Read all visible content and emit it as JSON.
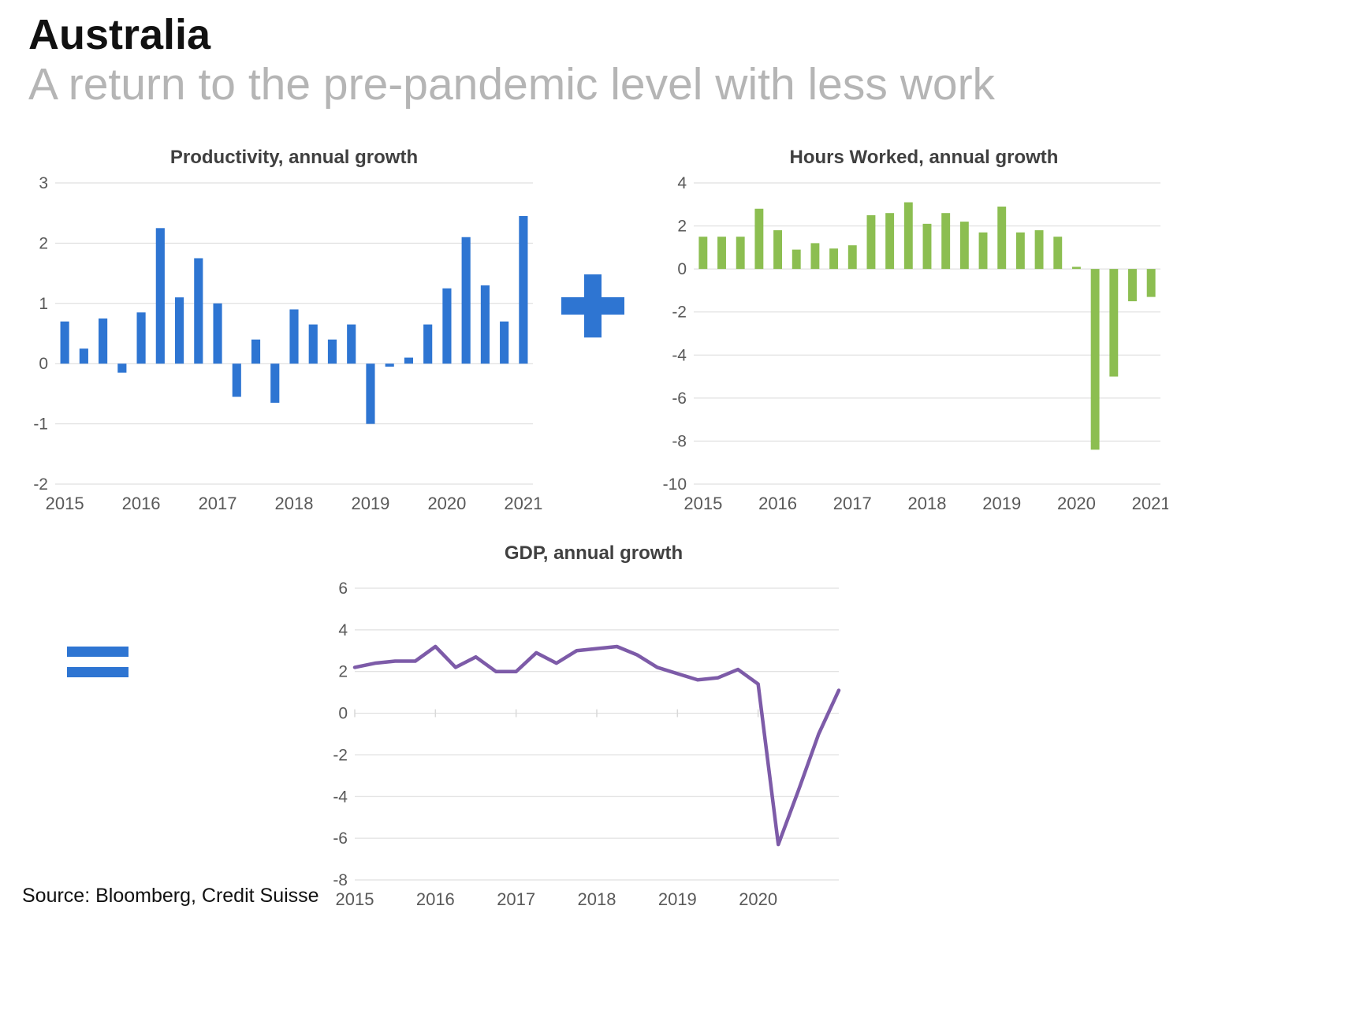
{
  "page": {
    "title": "Australia",
    "subtitle": "A return to the pre-pandemic level with less work",
    "source": "Source: Bloomberg, Credit Suisse"
  },
  "colors": {
    "bar_blue": "#2E75D2",
    "bar_green": "#8CBE51",
    "line_purple": "#7D5BA8",
    "operator_blue": "#2E75D2",
    "grid": "#D9D9D9",
    "axis_text": "#595959",
    "chart_title": "#404040",
    "subtitle_gray": "#B5B5B5",
    "text_dark": "#111111"
  },
  "chart_data": [
    {
      "id": "productivity",
      "type": "bar",
      "title": "Productivity, annual growth",
      "color": "#2E75D2",
      "ylim": [
        -2,
        3
      ],
      "ystep": 1,
      "x_labels": [
        "2015",
        "2016",
        "2017",
        "2018",
        "2019",
        "2020",
        "2021"
      ],
      "label_every": 4,
      "zero_ticks": false,
      "categories": [
        "2015 Q1",
        "2015 Q2",
        "2015 Q3",
        "2015 Q4",
        "2016 Q1",
        "2016 Q2",
        "2016 Q3",
        "2016 Q4",
        "2017 Q1",
        "2017 Q2",
        "2017 Q3",
        "2017 Q4",
        "2018 Q1",
        "2018 Q2",
        "2018 Q3",
        "2018 Q4",
        "2019 Q1",
        "2019 Q2",
        "2019 Q3",
        "2019 Q4",
        "2020 Q1",
        "2020 Q2",
        "2020 Q3",
        "2020 Q4",
        "2021 Q1"
      ],
      "values": [
        0.7,
        0.25,
        0.75,
        -0.15,
        0.85,
        2.25,
        1.1,
        1.75,
        1.0,
        -0.55,
        0.4,
        -0.65,
        0.9,
        0.65,
        0.4,
        0.65,
        -1.0,
        -0.05,
        0.1,
        0.65,
        1.25,
        2.1,
        1.3,
        0.7,
        2.45
      ]
    },
    {
      "id": "hours",
      "type": "bar",
      "title": "Hours Worked, annual growth",
      "color": "#8CBE51",
      "ylim": [
        -10,
        4
      ],
      "ystep": 2,
      "x_labels": [
        "2015",
        "2016",
        "2017",
        "2018",
        "2019",
        "2020",
        "2021"
      ],
      "label_every": 4,
      "zero_ticks": false,
      "categories": [
        "2015 Q1",
        "2015 Q2",
        "2015 Q3",
        "2015 Q4",
        "2016 Q1",
        "2016 Q2",
        "2016 Q3",
        "2016 Q4",
        "2017 Q1",
        "2017 Q2",
        "2017 Q3",
        "2017 Q4",
        "2018 Q1",
        "2018 Q2",
        "2018 Q3",
        "2018 Q4",
        "2019 Q1",
        "2019 Q2",
        "2019 Q3",
        "2019 Q4",
        "2020 Q1",
        "2020 Q2",
        "2020 Q3",
        "2020 Q4",
        "2021 Q1"
      ],
      "values": [
        1.5,
        1.5,
        1.5,
        2.8,
        1.8,
        0.9,
        1.2,
        0.95,
        1.1,
        2.5,
        2.6,
        3.1,
        2.1,
        2.6,
        2.2,
        1.7,
        2.9,
        1.7,
        1.8,
        1.5,
        0.1,
        -8.4,
        -5.0,
        -1.5,
        -1.3
      ]
    },
    {
      "id": "gdp",
      "type": "line",
      "title": "GDP, annual growth",
      "color": "#7D5BA8",
      "ylim": [
        -8,
        6
      ],
      "ystep": 2,
      "x_labels": [
        "2015",
        "2016",
        "2017",
        "2018",
        "2019",
        "2020"
      ],
      "label_every": 4,
      "zero_ticks": true,
      "categories": [
        "2015 Q1",
        "2015 Q2",
        "2015 Q3",
        "2015 Q4",
        "2016 Q1",
        "2016 Q2",
        "2016 Q3",
        "2016 Q4",
        "2017 Q1",
        "2017 Q2",
        "2017 Q3",
        "2017 Q4",
        "2018 Q1",
        "2018 Q2",
        "2018 Q3",
        "2018 Q4",
        "2019 Q1",
        "2019 Q2",
        "2019 Q3",
        "2019 Q4",
        "2020 Q1",
        "2020 Q2",
        "2020 Q3",
        "2020 Q4",
        "2021 Q1"
      ],
      "values": [
        2.2,
        2.4,
        2.5,
        2.5,
        3.2,
        2.2,
        2.7,
        2.0,
        2.0,
        2.9,
        2.4,
        3.0,
        3.1,
        3.2,
        2.8,
        2.2,
        1.9,
        1.6,
        1.7,
        2.1,
        1.4,
        -6.3,
        -3.7,
        -1.0,
        1.1
      ]
    }
  ]
}
